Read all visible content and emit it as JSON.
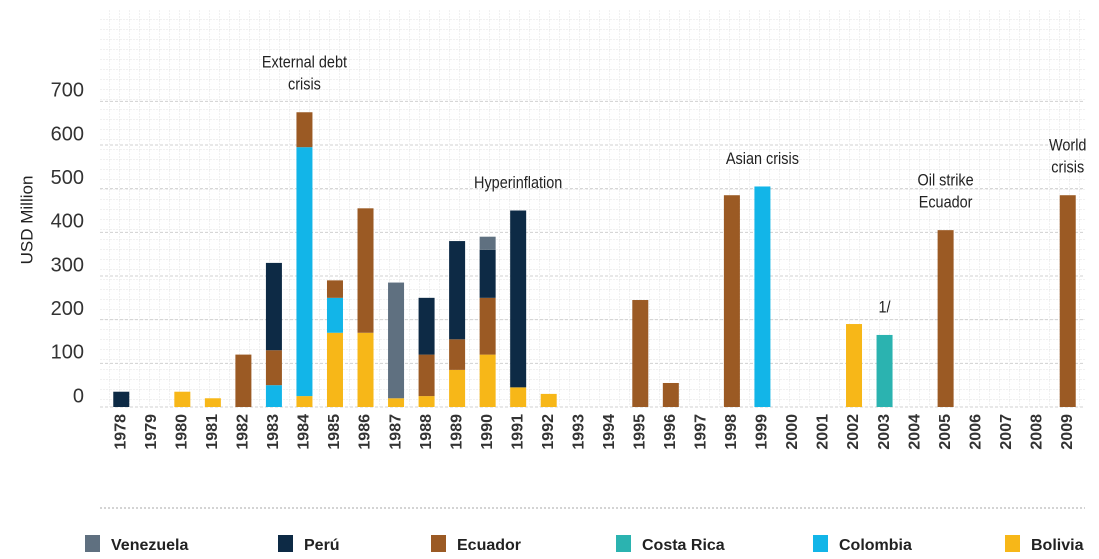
{
  "chart_data": {
    "type": "bar",
    "stacked": true,
    "y_label": "USD Million",
    "categories": [
      "1978",
      "1979",
      "1980",
      "1981",
      "1982",
      "1983",
      "1984",
      "1985",
      "1986",
      "1987",
      "1988",
      "1989",
      "1990",
      "1991",
      "1992",
      "1993",
      "1994",
      "1995",
      "1996",
      "1997",
      "1998",
      "1999",
      "2000",
      "2001",
      "2002",
      "2003",
      "2004",
      "2005",
      "2006",
      "2007",
      "2008",
      "2009"
    ],
    "series": [
      {
        "name": "Venezuela",
        "color": "#5f7080",
        "values": [
          0,
          0,
          0,
          0,
          0,
          0,
          0,
          0,
          0,
          265,
          0,
          0,
          30,
          0,
          0,
          0,
          0,
          0,
          0,
          0,
          0,
          0,
          0,
          0,
          0,
          0,
          0,
          0,
          0,
          0,
          0,
          0
        ]
      },
      {
        "name": "Perú",
        "color": "#0d2a45",
        "values": [
          35,
          0,
          0,
          0,
          0,
          200,
          0,
          0,
          0,
          0,
          130,
          225,
          110,
          405,
          0,
          0,
          0,
          0,
          0,
          0,
          0,
          0,
          0,
          0,
          0,
          0,
          0,
          0,
          0,
          0,
          0,
          0
        ]
      },
      {
        "name": "Ecuador",
        "color": "#9b5a24",
        "values": [
          0,
          0,
          0,
          0,
          120,
          80,
          80,
          40,
          285,
          0,
          95,
          70,
          130,
          0,
          0,
          0,
          0,
          245,
          55,
          0,
          485,
          0,
          0,
          0,
          0,
          0,
          0,
          405,
          0,
          0,
          0,
          485
        ]
      },
      {
        "name": "Costa Rica",
        "color": "#2bb3b0",
        "values": [
          0,
          0,
          0,
          0,
          0,
          0,
          0,
          0,
          0,
          0,
          0,
          0,
          0,
          0,
          0,
          0,
          0,
          0,
          0,
          0,
          0,
          0,
          0,
          0,
          0,
          165,
          0,
          0,
          0,
          0,
          0,
          0
        ]
      },
      {
        "name": "Colombia",
        "color": "#12b5e8",
        "values": [
          0,
          0,
          0,
          0,
          0,
          50,
          570,
          80,
          0,
          0,
          0,
          0,
          0,
          0,
          0,
          0,
          0,
          0,
          0,
          0,
          0,
          505,
          0,
          0,
          0,
          0,
          0,
          0,
          0,
          0,
          0,
          0
        ]
      },
      {
        "name": "Bolivia",
        "color": "#f7b718",
        "values": [
          0,
          0,
          35,
          20,
          0,
          0,
          25,
          170,
          170,
          20,
          25,
          85,
          120,
          45,
          30,
          0,
          0,
          0,
          0,
          0,
          0,
          0,
          0,
          0,
          190,
          0,
          0,
          0,
          0,
          0,
          0,
          0
        ]
      }
    ],
    "annotations": [
      {
        "x": "1984",
        "text": [
          "External debt",
          "crisis"
        ]
      },
      {
        "x": "1991",
        "text": [
          "Hyperinflation"
        ]
      },
      {
        "x": "1999",
        "text": [
          "Asian crisis"
        ]
      },
      {
        "x": "2003",
        "text": [
          "1/"
        ]
      },
      {
        "x": "2005",
        "text": [
          "Oil strike",
          "Ecuador"
        ]
      },
      {
        "x": "2009",
        "text": [
          "World",
          "crisis"
        ]
      }
    ],
    "ylim": [
      0,
      900
    ],
    "yticks": [
      0,
      100,
      200,
      300,
      400,
      500,
      600,
      700
    ],
    "grid": true
  }
}
